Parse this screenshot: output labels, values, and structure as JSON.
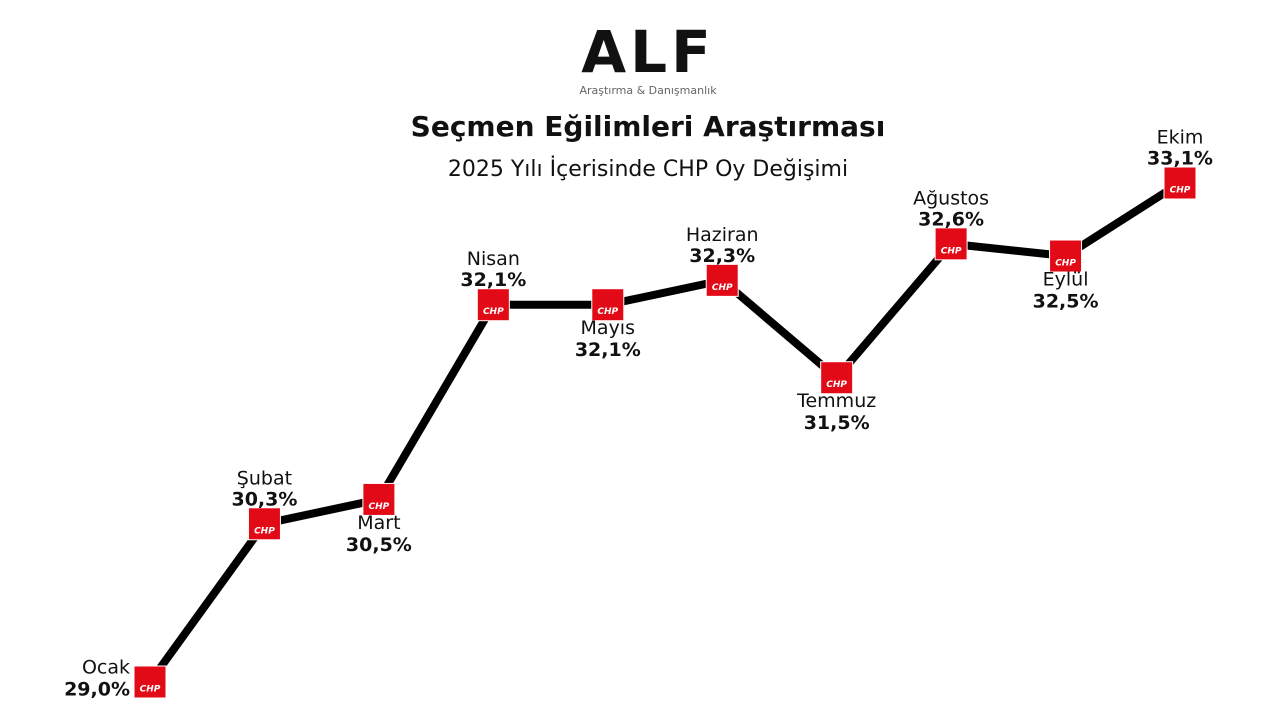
{
  "logo": {
    "name": "ALF",
    "tagline": "Araştırma & Danışmanlık"
  },
  "chart_data": {
    "type": "line",
    "title": "Seçmen Eğilimleri Araştırması",
    "subtitle": "2025 Yılı İçerisinde CHP Oy Değişimi",
    "categories": [
      "Ocak",
      "Şubat",
      "Mart",
      "Nisan",
      "Mayıs",
      "Haziran",
      "Temmuz",
      "Ağustos",
      "Eylül",
      "Ekim"
    ],
    "values": [
      29.0,
      30.3,
      30.5,
      32.1,
      32.1,
      32.3,
      31.5,
      32.6,
      32.5,
      33.1
    ],
    "value_labels": [
      "29,0%",
      "30,3%",
      "30,5%",
      "32,1%",
      "32,1%",
      "32,3%",
      "31,5%",
      "32,6%",
      "32,5%",
      "33,1%"
    ],
    "color": "#000000",
    "marker_color": "#e30a17",
    "marker_text": "CHP"
  }
}
